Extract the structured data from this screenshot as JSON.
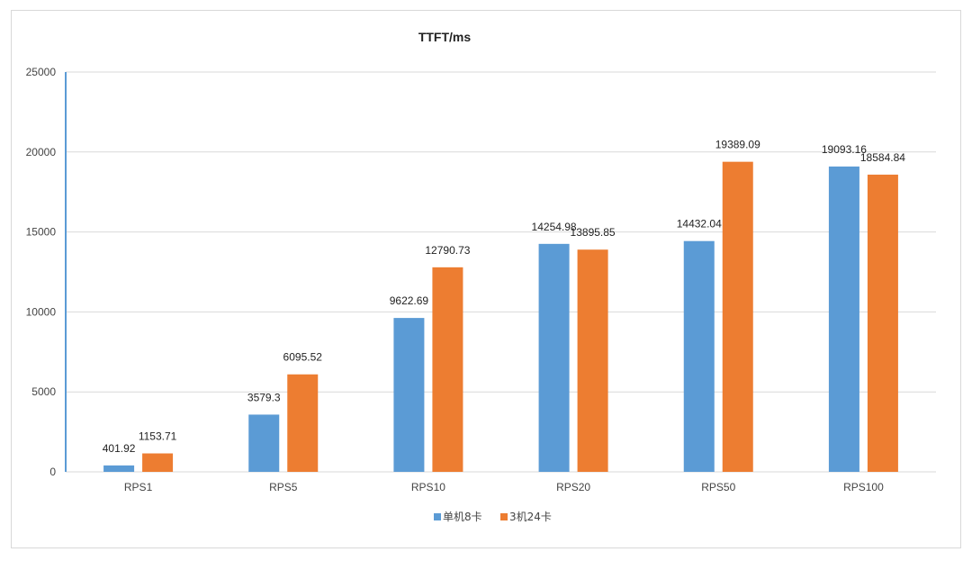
{
  "chart_data": {
    "type": "bar",
    "title": "TTFT/ms",
    "categories": [
      "RPS1",
      "RPS5",
      "RPS10",
      "RPS20",
      "RPS50",
      "RPS100"
    ],
    "series": [
      {
        "name": "单机8卡",
        "color": "#5b9bd5",
        "values": [
          401.92,
          3579.3,
          9622.69,
          14254.98,
          14432.04,
          19093.16
        ],
        "labels": [
          "401.92",
          "3579.3",
          "9622.69",
          "14254.98",
          "14432.04",
          "19093.16"
        ]
      },
      {
        "name": "3机24卡",
        "color": "#ed7d31",
        "values": [
          1153.71,
          6095.52,
          12790.73,
          13895.85,
          19389.09,
          18584.84
        ],
        "labels": [
          "1153.71",
          "6095.52",
          "12790.73",
          "13895.85",
          "19389.09",
          "18584.84"
        ]
      }
    ],
    "ylim": [
      0,
      25000
    ],
    "yticks": [
      0,
      5000,
      10000,
      15000,
      20000,
      25000
    ],
    "xlabel": "",
    "ylabel": "",
    "grid": true,
    "legend_position": "bottom",
    "axis_color": "#5b9bd5",
    "grid_color": "#d9d9d9"
  }
}
